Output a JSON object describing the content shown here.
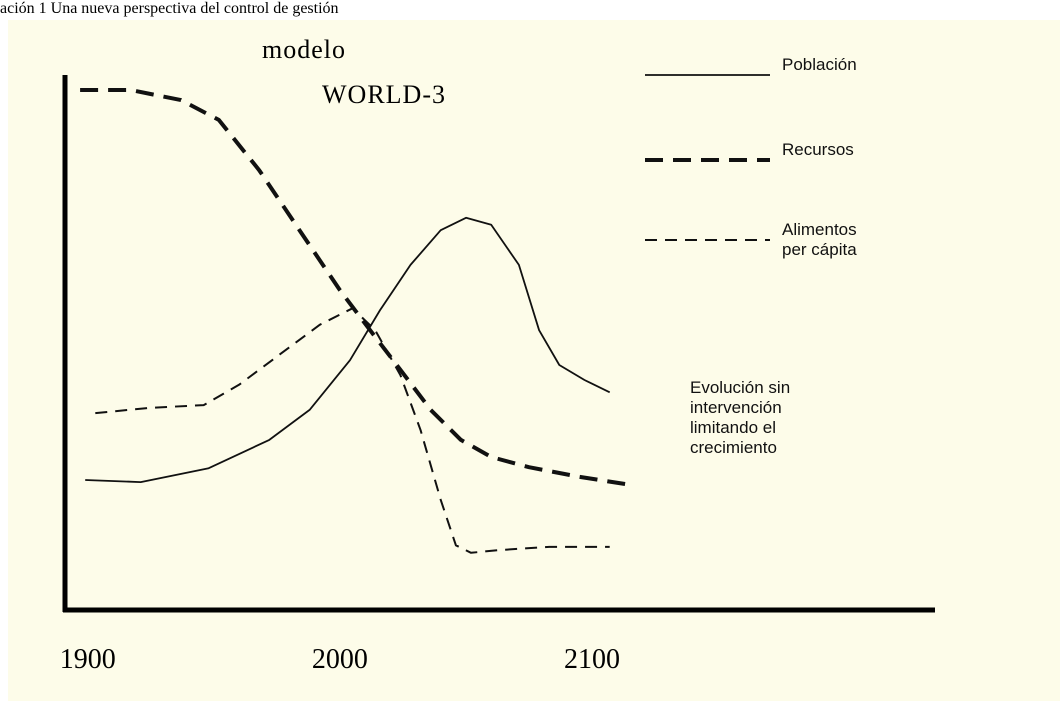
{
  "caption": "ación 1 Una nueva perspectiva del control de gestión",
  "chart_data": {
    "type": "line",
    "title": "modelo",
    "subtitle": "WORLD-3",
    "annotation": "Evolución sin intervención limitando el crecimiento",
    "xlim": [
      1891,
      2236
    ],
    "xticks": [
      1900,
      2000,
      2100
    ],
    "ylim": [
      0,
      100
    ],
    "series": [
      {
        "name": "Población",
        "color": "#111111",
        "style": "solid",
        "x": [
          1899,
          1921,
          1948,
          1972,
          1988,
          2004,
          2016,
          2028,
          2040,
          2050,
          2060,
          2071,
          2079,
          2087,
          2097,
          2107
        ],
        "values": [
          24.3,
          23.9,
          26.5,
          31.8,
          37.4,
          46.7,
          56.1,
          64.5,
          71.0,
          73.3,
          72.0,
          64.5,
          52.3,
          45.8,
          43.0,
          40.7
        ]
      },
      {
        "name": "Recursos",
        "color": "#111111",
        "style": "thick-dashed",
        "x": [
          1897,
          1917,
          1937,
          1952,
          1968,
          1984,
          2000,
          2012,
          2024,
          2036,
          2048,
          2060,
          2075,
          2095,
          2115
        ],
        "values": [
          97.2,
          97.2,
          95.3,
          91.6,
          82.2,
          71.0,
          59.8,
          52.3,
          44.9,
          37.4,
          31.8,
          28.6,
          26.7,
          24.9,
          23.4
        ]
      },
      {
        "name": "Alimentos per cápita",
        "color": "#111111",
        "style": "dashed",
        "x": [
          1903,
          1925,
          1946,
          1960,
          1976,
          1992,
          2005,
          2014,
          2024,
          2032,
          2040,
          2046,
          2052,
          2063,
          2083,
          2107
        ],
        "values": [
          36.8,
          37.8,
          38.3,
          42.1,
          47.7,
          53.3,
          56.4,
          52.3,
          43.9,
          33.6,
          20.6,
          12.1,
          10.7,
          11.2,
          11.8,
          11.8
        ]
      }
    ]
  }
}
